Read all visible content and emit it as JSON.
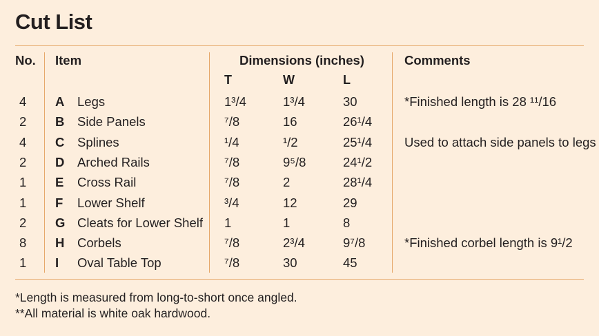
{
  "title": "Cut List",
  "headers": {
    "no": "No.",
    "item": "Item",
    "dimensions": "Dimensions (inches)",
    "comments": "Comments",
    "t": "T",
    "w": "W",
    "l": "L"
  },
  "rows": [
    {
      "no": "4",
      "letter": "A",
      "item": "Legs",
      "t": "1³/4",
      "w": "1³/4",
      "l": "30",
      "comment": "*Finished length is 28 ¹¹/16"
    },
    {
      "no": "2",
      "letter": "B",
      "item": "Side Panels",
      "t": "⁷/8",
      "w": "16",
      "l": "26¹/4",
      "comment": ""
    },
    {
      "no": "4",
      "letter": "C",
      "item": "Splines",
      "t": "¹/4",
      "w": "¹/2",
      "l": "25¹/4",
      "comment": "Used to attach side panels to legs"
    },
    {
      "no": "2",
      "letter": "D",
      "item": "Arched Rails",
      "t": "⁷/8",
      "w": "9⁵/8",
      "l": "24¹/2",
      "comment": ""
    },
    {
      "no": "1",
      "letter": "E",
      "item": "Cross Rail",
      "t": "⁷/8",
      "w": "2",
      "l": "28¹/4",
      "comment": ""
    },
    {
      "no": "1",
      "letter": "F",
      "item": "Lower Shelf",
      "t": "³/4",
      "w": "12",
      "l": "29",
      "comment": ""
    },
    {
      "no": "2",
      "letter": "G",
      "item": "Cleats for Lower Shelf",
      "t": "1",
      "w": "1",
      "l": "8",
      "comment": ""
    },
    {
      "no": "8",
      "letter": "H",
      "item": "Corbels",
      "t": "⁷/8",
      "w": "2³/4",
      "l": "9⁷/8",
      "comment": "*Finished corbel length is 9¹/2"
    },
    {
      "no": "1",
      "letter": "I",
      "item": "Oval Table Top",
      "t": "⁷/8",
      "w": "30",
      "l": "45",
      "comment": ""
    }
  ],
  "footnotes": [
    "*Length is measured from long-to-short once angled.",
    "**All material is white oak hardwood."
  ],
  "colors": {
    "background": "#fdeedd",
    "rule": "#e6a86a",
    "text": "#231f20"
  }
}
